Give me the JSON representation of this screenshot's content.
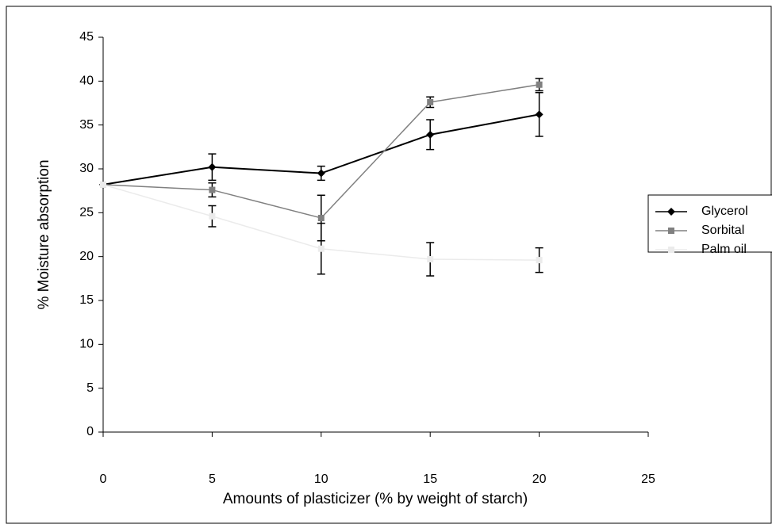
{
  "chart_data": {
    "type": "line",
    "x_label": "Amounts of plasticizer (% by weight of starch)",
    "y_label": "% Moisture absorption",
    "x": [
      0,
      5,
      10,
      15,
      20
    ],
    "xlim": [
      0,
      25
    ],
    "xticks": [
      0,
      5,
      10,
      15,
      20,
      25
    ],
    "ylim": [
      0,
      45
    ],
    "yticks": [
      0,
      5,
      10,
      15,
      20,
      25,
      30,
      35,
      40,
      45
    ],
    "legend": "right",
    "series": [
      {
        "name": "Glycerol",
        "color": "#000000",
        "marker": "diamond",
        "values": [
          28.2,
          30.2,
          29.5,
          33.9,
          36.2
        ],
        "errors": [
          null,
          1.5,
          0.8,
          1.7,
          2.5
        ]
      },
      {
        "name": "Sorbital",
        "color": "#808080",
        "marker": "square",
        "values": [
          28.2,
          27.6,
          24.4,
          37.6,
          39.6
        ],
        "errors": [
          null,
          0.8,
          2.6,
          0.6,
          0.7
        ]
      },
      {
        "name": "Palm oil",
        "color": "#ebebeb",
        "marker": "square",
        "values": [
          28.2,
          24.6,
          20.9,
          19.7,
          19.6
        ],
        "errors": [
          null,
          1.2,
          2.9,
          1.9,
          1.4
        ]
      }
    ]
  }
}
